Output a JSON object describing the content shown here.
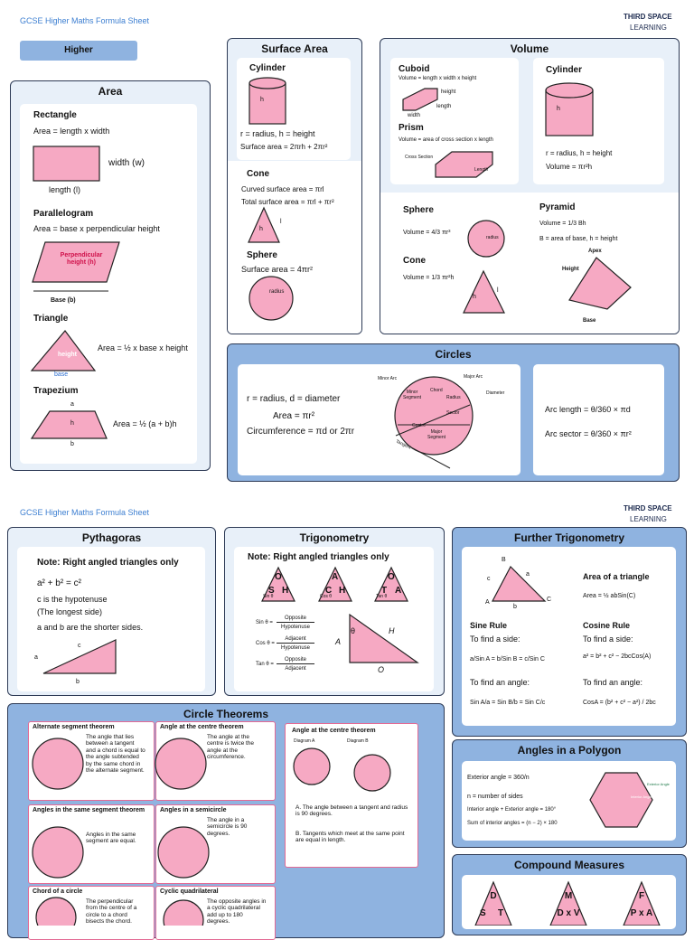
{
  "page1": {
    "header": "GCSE Higher Maths Formula Sheet",
    "logo": {
      "line1": "THIRD SPACE",
      "line2": "LEARNING"
    },
    "tab": "Higher",
    "area": {
      "title": "Area",
      "rectangle": {
        "name": "Rectangle",
        "formula": "Area = length x width",
        "width": "width (w)",
        "length": "length (l)"
      },
      "parallelogram": {
        "name": "Parallelogram",
        "formula": "Area = base x perpendicular height",
        "height": "Perpendicular height (h)",
        "base": "Base (b)"
      },
      "triangle": {
        "name": "Triangle",
        "formula": "Area = ½ x base x height",
        "height": "height",
        "base": "base"
      },
      "trapezium": {
        "name": "Trapezium",
        "formula": "Area = ½ (a + b)h",
        "a": "a",
        "h": "h",
        "b": "b"
      }
    },
    "surface_area": {
      "title": "Surface Area",
      "cylinder": {
        "name": "Cylinder",
        "h": "h",
        "key": "r = radius, h = height",
        "formula": "Surface area = 2πrh + 2πr²"
      },
      "cone": {
        "name": "Cone",
        "curved": "Curved surface area = πrl",
        "total": "Total surface area = πrl + πr²",
        "h": "h",
        "l": "l"
      },
      "sphere": {
        "name": "Sphere",
        "formula": "Surface area = 4πr²",
        "r": "radius"
      }
    },
    "volume": {
      "title": "Volume",
      "cuboid": {
        "name": "Cuboid",
        "formula": "Volume = length x width x height",
        "height": "height",
        "length": "length",
        "width": "width"
      },
      "prism": {
        "name": "Prism",
        "formula": "Volume = area of cross section x length",
        "section": "Cross Section",
        "length": "Length"
      },
      "cylinder": {
        "name": "Cylinder",
        "h": "h",
        "key": "r = radius, h = height",
        "formula": "Volume = πr²h"
      },
      "sphere": {
        "name": "Sphere",
        "formula": "Volume = 4/3 πr³",
        "r": "radius"
      },
      "cone": {
        "name": "Cone",
        "formula": "Volume = 1/3 πr²h",
        "h": "h",
        "l": "l"
      },
      "pyramid": {
        "name": "Pyramid",
        "formula": "Volume = 1/3 Bh",
        "key": "B = area of base, h = height",
        "apex": "Apex",
        "height": "Height",
        "base": "Base"
      }
    },
    "circles": {
      "title": "Circles",
      "key": "r = radius, d = diameter",
      "area": "Area = πr²",
      "circumference": "Circumference = πd or 2πr",
      "diagram": {
        "minor_arc": "Minor Arc",
        "major_arc": "Major Arc",
        "chord": "Chord",
        "radius": "Radius",
        "diameter": "Diameter",
        "sector": "Sector",
        "centre": "Centre",
        "major_segment": "Major Segment",
        "minor_segment": "Minor Segment",
        "tangent": "Tangent"
      },
      "arc_length": "Arc length = θ/360 × πd",
      "arc_sector": "Arc sector = θ/360 × πr²"
    }
  },
  "page2": {
    "header": "GCSE Higher Maths Formula Sheet",
    "logo": {
      "line1": "THIRD SPACE",
      "line2": "LEARNING"
    },
    "pythagoras": {
      "title": "Pythagoras",
      "note": "Note: Right angled triangles only",
      "formula": "a² + b² = c²",
      "hyp": "c is the hypotenuse",
      "longest": "(The longest side)",
      "shorter": "a and b are the shorter sides.",
      "a": "a",
      "b": "b",
      "c": "c"
    },
    "trigonometry": {
      "title": "Trigonometry",
      "note": "Note: Right angled triangles only",
      "triangles": [
        {
          "top": "O",
          "left": "S",
          "right": "H",
          "fn": "Sin θ"
        },
        {
          "top": "A",
          "left": "C",
          "right": "H",
          "fn": "Cos θ"
        },
        {
          "top": "O",
          "left": "T",
          "right": "A",
          "fn": "Tan θ"
        }
      ],
      "ratios": [
        {
          "lhs": "Sin θ =",
          "num": "Opposite",
          "den": "Hypotenuse"
        },
        {
          "lhs": "Cos θ =",
          "num": "Adjacent",
          "den": "Hypotenuse"
        },
        {
          "lhs": "Tan θ =",
          "num": "Opposite",
          "den": "Adjacent"
        }
      ],
      "labels": {
        "theta": "θ",
        "h": "H",
        "a": "A",
        "o": "O"
      }
    },
    "further": {
      "title": "Further Trigonometry",
      "labels": {
        "B": "B",
        "a": "a",
        "c": "c",
        "A": "A",
        "b": "b",
        "C": "C"
      },
      "area_title": "Area of a triangle",
      "area": "Area = ½ abSin(C)",
      "sine": {
        "name": "Sine Rule",
        "side": "To find a side:",
        "side_f": "a/Sin A = b/Sin B = c/Sin C",
        "angle": "To find an angle:",
        "angle_f": "Sin A/a = Sin B/b = Sin C/c"
      },
      "cosine": {
        "name": "Cosine Rule",
        "side": "To find a side:",
        "side_f": "a² = b² + c² − 2bcCos(A)",
        "angle": "To find an angle:",
        "angle_f": "CosA = (b² + c² − a²) / 2bc"
      }
    },
    "theorems": {
      "title": "Circle Theorems",
      "cards": [
        {
          "title": "Alternate segment theorem",
          "text": "The angle that lies between a tangent and a chord is equal to the angle subtended by the same chord in the alternate segment."
        },
        {
          "title": "Angle at the centre theorem",
          "text": "The angle at the centre is twice the angle at the circumference."
        },
        {
          "title": "Angles in the same segment theorem",
          "text": "Angles in the same segment are equal."
        },
        {
          "title": "Angles in a semicircle",
          "text": "The angle in a semicircle is 90 degrees."
        },
        {
          "title": "Chord of a circle",
          "text": "The perpendicular from the centre of a circle to a chord bisects the chord."
        },
        {
          "title": "Cyclic quadrilateral",
          "text": "The opposite angles in a cyclic quadrilateral add up to 180 degrees."
        }
      ],
      "side": {
        "title": "Angle at the centre theorem",
        "diagram_a": "Diagram A",
        "diagram_b": "Diagram B",
        "a": "A. The angle between a tangent and radius is 90 degrees.",
        "b": "B. Tangents which meet at the same point are equal in length."
      }
    },
    "polygon": {
      "title": "Angles in a Polygon",
      "exterior": "Exterior angle = 360/n",
      "n": "n = number of sides",
      "sum180": "Interior angle + Exterior angle = 180°",
      "sum": "Sum of interior angles = (n − 2) × 180",
      "interior_label": "Interior Angle",
      "exterior_label": "Exterior Angle"
    },
    "compound": {
      "title": "Compound Measures",
      "triangles": [
        {
          "top": "D",
          "left": "S",
          "right": "T"
        },
        {
          "top": "M",
          "bottom": "D x V"
        },
        {
          "top": "F",
          "bottom": "P x A"
        }
      ]
    }
  }
}
